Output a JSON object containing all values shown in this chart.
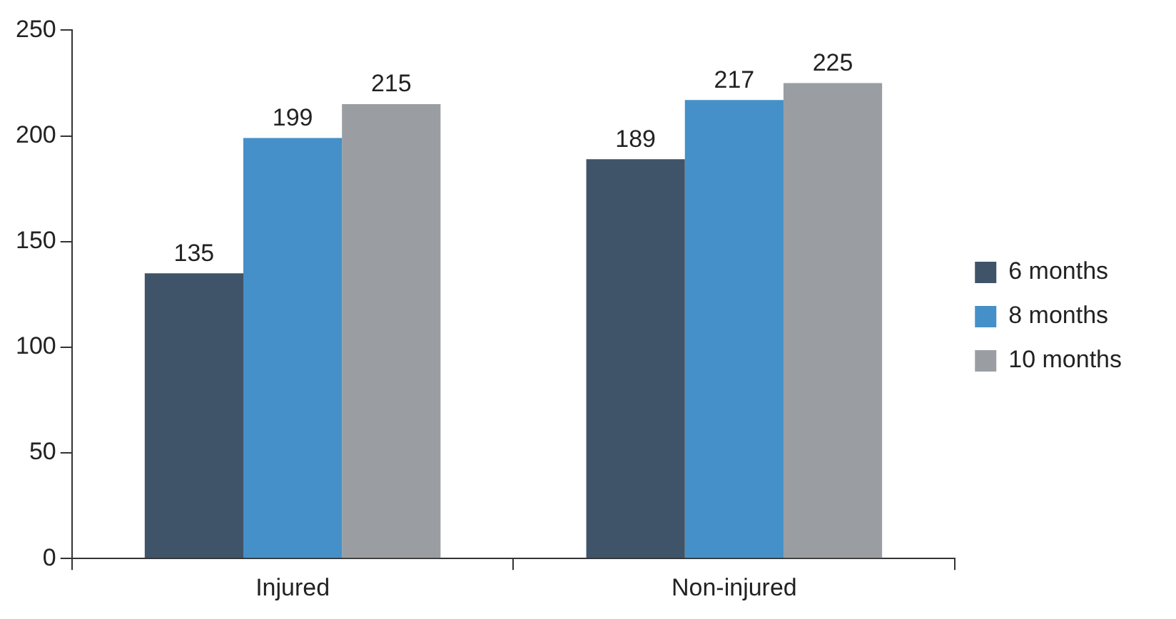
{
  "chart_data": {
    "type": "bar",
    "categories": [
      "Injured",
      "Non-injured"
    ],
    "series": [
      {
        "name": "6 months",
        "color": "#3f5468",
        "values": [
          135,
          189
        ]
      },
      {
        "name": "8 months",
        "color": "#4590c8",
        "values": [
          199,
          217
        ]
      },
      {
        "name": "10 months",
        "color": "#9a9ea2",
        "values": [
          215,
          225
        ]
      }
    ],
    "ylim": [
      0,
      250
    ],
    "yticks": [
      0,
      50,
      100,
      150,
      200,
      250
    ],
    "grid": false,
    "legend": "right",
    "data_labels": true
  }
}
